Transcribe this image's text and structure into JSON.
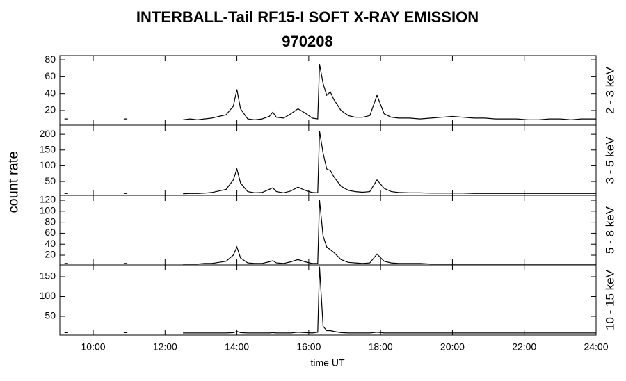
{
  "chart_data": {
    "type": "line",
    "title": "INTERBALL-Tail RF15-I SOFT X-RAY EMISSION",
    "subtitle": "970208",
    "xlabel": "time UT",
    "ylabel": "count rate",
    "color": "#000000",
    "xlim": [
      9.07,
      24
    ],
    "xticks": [
      {
        "value": 10,
        "label": "10:00"
      },
      {
        "value": 12,
        "label": "12:00"
      },
      {
        "value": 14,
        "label": "14:00"
      },
      {
        "value": 16,
        "label": "16:00"
      },
      {
        "value": 18,
        "label": "18:00"
      },
      {
        "value": 20,
        "label": "20:00"
      },
      {
        "value": 22,
        "label": "22:00"
      },
      {
        "value": 24,
        "label": "24:00"
      }
    ],
    "x": [
      9.2,
      9.3,
      10.0,
      10.85,
      10.95,
      11.5,
      12.5,
      12.7,
      12.9,
      13.1,
      13.3,
      13.5,
      13.7,
      13.9,
      14.0,
      14.1,
      14.3,
      14.5,
      14.7,
      14.9,
      15.0,
      15.1,
      15.3,
      15.5,
      15.7,
      15.9,
      16.1,
      16.25,
      16.3,
      16.4,
      16.5,
      16.6,
      16.7,
      16.9,
      17.1,
      17.3,
      17.5,
      17.7,
      17.9,
      18.1,
      18.3,
      18.5,
      18.8,
      19.1,
      19.4,
      19.7,
      20.0,
      20.3,
      20.6,
      20.9,
      21.2,
      21.5,
      21.8,
      22.1,
      22.4,
      22.7,
      23.0,
      23.3,
      23.6,
      24.0
    ],
    "panels": [
      {
        "label": "2 - 3 keV",
        "ylim": [
          2.7,
          85
        ],
        "yticks": [
          20,
          40,
          60,
          80
        ],
        "values": [
          10,
          10,
          null,
          10,
          10,
          null,
          9,
          10,
          9,
          10,
          11,
          13,
          15,
          25,
          45,
          22,
          10,
          9,
          10,
          13,
          18,
          12,
          11,
          16,
          22,
          17,
          11,
          10,
          75,
          52,
          38,
          42,
          33,
          20,
          14,
          12,
          12,
          14,
          38,
          16,
          12,
          11,
          11,
          10,
          11,
          12,
          13,
          12,
          11,
          11,
          10,
          10,
          10,
          9,
          9,
          10,
          10,
          9,
          10,
          10
        ]
      },
      {
        "label": "3 - 5 keV",
        "ylim": [
          6,
          229
        ],
        "yticks": [
          50,
          100,
          150,
          200
        ],
        "values": [
          12,
          12,
          null,
          12,
          12,
          null,
          11,
          12,
          12,
          13,
          15,
          20,
          25,
          55,
          90,
          45,
          18,
          14,
          15,
          25,
          30,
          18,
          14,
          20,
          32,
          22,
          15,
          14,
          210,
          140,
          90,
          85,
          65,
          35,
          22,
          18,
          16,
          18,
          55,
          28,
          18,
          15,
          14,
          14,
          13,
          13,
          13,
          13,
          12,
          12,
          12,
          12,
          12,
          12,
          12,
          12,
          12,
          12,
          12,
          12
        ]
      },
      {
        "label": "5 - 8 keV",
        "ylim": [
          2.3,
          128.9
        ],
        "yticks": [
          20,
          40,
          60,
          80,
          100,
          120
        ],
        "values": [
          5,
          5,
          null,
          5,
          5,
          null,
          4,
          4,
          4,
          5,
          5,
          7,
          9,
          20,
          35,
          15,
          6,
          5,
          5,
          8,
          10,
          6,
          5,
          8,
          12,
          8,
          5,
          5,
          120,
          55,
          35,
          30,
          25,
          12,
          7,
          6,
          5,
          6,
          22,
          9,
          6,
          5,
          5,
          5,
          4,
          4,
          4,
          4,
          4,
          4,
          4,
          4,
          4,
          4,
          4,
          4,
          4,
          4,
          4,
          4
        ]
      },
      {
        "label": "10 - 15 keV",
        "ylim": [
          2.6,
          179.8
        ],
        "yticks": [
          50,
          100,
          150
        ],
        "values": [
          9,
          9,
          null,
          9,
          9,
          null,
          8,
          8,
          8,
          8,
          8,
          8,
          8,
          9,
          12,
          9,
          8,
          8,
          8,
          8,
          9,
          8,
          8,
          8,
          10,
          9,
          8,
          10,
          175,
          25,
          14,
          14,
          12,
          9,
          8,
          8,
          8,
          8,
          10,
          8,
          8,
          8,
          8,
          8,
          8,
          8,
          8,
          8,
          8,
          8,
          8,
          8,
          8,
          8,
          8,
          8,
          8,
          8,
          8,
          8
        ]
      }
    ]
  }
}
